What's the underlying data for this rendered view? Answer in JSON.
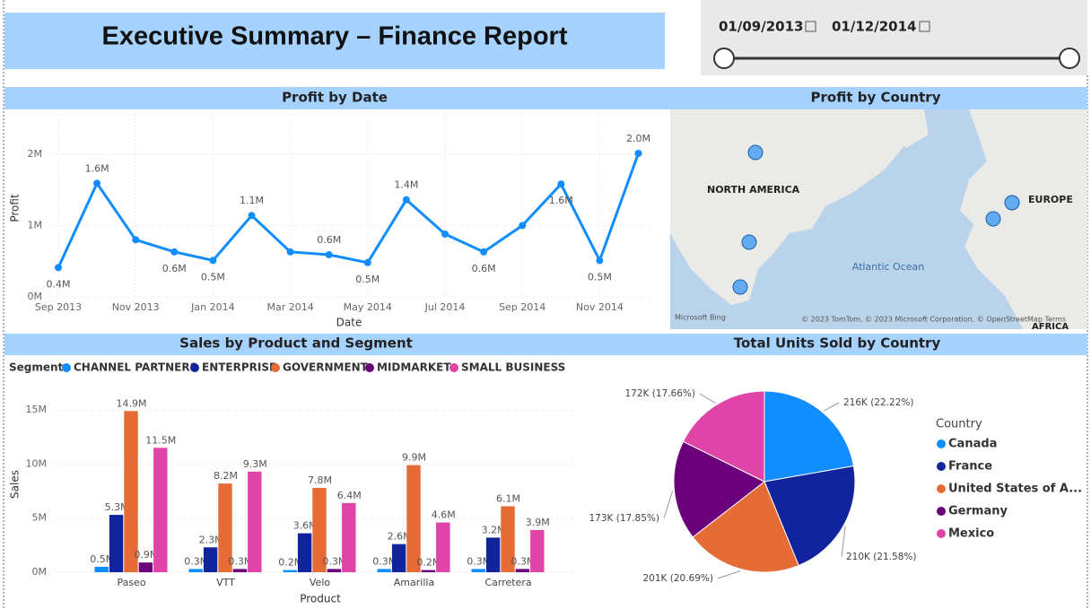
{
  "header": {
    "title": "Executive Summary – Finance Report"
  },
  "slicer": {
    "start": "01/09/2013",
    "end": "01/12/2014"
  },
  "map": {
    "title": "Profit by Country",
    "labels": [
      "NORTH AMERICA",
      "EUROPE",
      "Atlantic Ocean",
      "AFRICA"
    ],
    "credit": "Microsoft Bing",
    "copyright": "© 2023 TomTom, © 2023 Microsoft Corporation, © OpenStreetMap Terms"
  },
  "chart_data": [
    {
      "type": "line",
      "title": "Profit by Date",
      "x_label": "Date",
      "y_label": "Profit",
      "color": "#118dff",
      "categories": [
        "Sep 2013",
        null,
        "Nov 2013",
        null,
        "Jan 2014",
        null,
        "Mar 2014",
        null,
        "May 2014",
        null,
        "Jul 2014",
        null,
        "Sep 2014",
        null,
        "Nov 2014",
        null
      ],
      "values": [
        410000,
        1590000,
        800000,
        630000,
        510000,
        1140000,
        630000,
        590000,
        480000,
        1360000,
        880000,
        630000,
        1000000,
        1580000,
        510000,
        2010000
      ],
      "value_labels": [
        "0.4M",
        "1.6M",
        null,
        "0.6M",
        "0.5M",
        "1.1M",
        null,
        "0.6M",
        "0.5M",
        "1.4M",
        null,
        "0.6M",
        null,
        "1.6M",
        "0.5M",
        "2.0M"
      ],
      "ylim": [
        0,
        2550000
      ],
      "yticks": [
        {
          "value": 0,
          "label": "0M"
        },
        {
          "value": 1000000,
          "label": "1M"
        },
        {
          "value": 2000000,
          "label": "2M"
        }
      ],
      "grid": true
    },
    {
      "type": "bar",
      "title": "Sales by Product and Segment",
      "x_label": "Product",
      "y_label": "Sales",
      "legend_title": "Segment",
      "categories": [
        "Paseo",
        "VTT",
        "Velo",
        "Amarilla",
        "Carretera"
      ],
      "series": [
        {
          "name": "CHANNEL PARTNERS",
          "color": "#118dff",
          "values": [
            500000,
            300000,
            200000,
            300000,
            300000
          ],
          "value_labels": [
            "0.5M",
            "0.3M",
            "0.2M",
            "0.3M",
            "0.3M"
          ]
        },
        {
          "name": "ENTERPRISE",
          "color": "#12239e",
          "values": [
            5300000,
            2300000,
            3600000,
            2600000,
            3200000
          ],
          "value_labels": [
            "5.3M",
            "2.3M",
            "3.6M",
            "2.6M",
            "3.2M"
          ]
        },
        {
          "name": "GOVERNMENT",
          "color": "#e66c37",
          "values": [
            14900000,
            8200000,
            7800000,
            9900000,
            6100000
          ],
          "value_labels": [
            "14.9M",
            "8.2M",
            "7.8M",
            "9.9M",
            "6.1M"
          ]
        },
        {
          "name": "MIDMARKET",
          "color": "#6b007b",
          "values": [
            900000,
            300000,
            300000,
            200000,
            300000
          ],
          "value_labels": [
            "0.9M",
            "0.3M",
            "0.3M",
            "0.2M",
            "0.3M"
          ]
        },
        {
          "name": "SMALL BUSINESS",
          "color": "#e044a7",
          "values": [
            11500000,
            9300000,
            6400000,
            4600000,
            3900000
          ],
          "value_labels": [
            "11.5M",
            "9.3M",
            "6.4M",
            "4.6M",
            "3.9M"
          ]
        }
      ],
      "ylim": [
        0,
        16500000
      ],
      "yticks": [
        {
          "value": 0,
          "label": "0M"
        },
        {
          "value": 5000000,
          "label": "5M"
        },
        {
          "value": 10000000,
          "label": "10M"
        },
        {
          "value": 15000000,
          "label": "15M"
        }
      ],
      "grid": true
    },
    {
      "type": "pie",
      "title": "Total Units Sold by Country",
      "legend_title": "Country",
      "categories": [
        "Canada",
        "France",
        "United States of A...",
        "Germany",
        "Mexico"
      ],
      "colors": [
        "#118dff",
        "#12239e",
        "#e66c37",
        "#6b007b",
        "#e044a7"
      ],
      "values": [
        216000,
        210000,
        201000,
        173000,
        172000
      ],
      "value_labels": [
        "216K (22.22%)",
        "210K (21.58%)",
        "201K (20.69%)",
        "173K (17.85%)",
        "172K (17.66%)"
      ]
    }
  ]
}
